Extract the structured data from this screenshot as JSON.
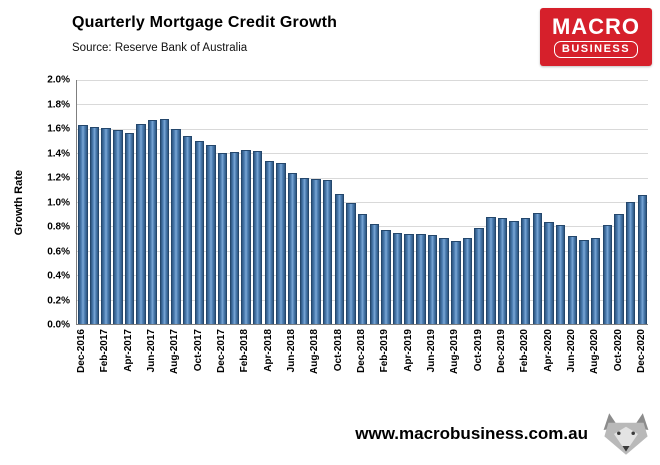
{
  "header": {
    "title": "Quarterly Mortgage Credit Growth",
    "source": "Source: Reserve Bank of Australia",
    "logo": {
      "line1": "MACRO",
      "line2": "BUSINESS",
      "background": "#d6202b"
    }
  },
  "footer": {
    "url": "www.macrobusiness.com.au"
  },
  "chart_data": {
    "type": "bar",
    "title": "Quarterly Mortgage Credit Growth",
    "subtitle": "Source: Reserve Bank of Australia",
    "xlabel": "",
    "ylabel": "Growth Rate",
    "ylim": [
      0.0,
      2.0
    ],
    "y_tick_step": 0.2,
    "y_ticks": [
      "2.0%",
      "1.8%",
      "1.6%",
      "1.4%",
      "1.2%",
      "1.0%",
      "0.8%",
      "0.6%",
      "0.4%",
      "0.2%",
      "0.0%"
    ],
    "grid": true,
    "bar_color": "#3e6a9e",
    "legend": "none",
    "categories": [
      "Dec-2016",
      "Jan-2017",
      "Feb-2017",
      "Mar-2017",
      "Apr-2017",
      "May-2017",
      "Jun-2017",
      "Jul-2017",
      "Aug-2017",
      "Sep-2017",
      "Oct-2017",
      "Nov-2017",
      "Dec-2017",
      "Jan-2018",
      "Feb-2018",
      "Mar-2018",
      "Apr-2018",
      "May-2018",
      "Jun-2018",
      "Jul-2018",
      "Aug-2018",
      "Sep-2018",
      "Oct-2018",
      "Nov-2018",
      "Dec-2018",
      "Jan-2019",
      "Feb-2019",
      "Mar-2019",
      "Apr-2019",
      "May-2019",
      "Jun-2019",
      "Jul-2019",
      "Aug-2019",
      "Sep-2019",
      "Oct-2019",
      "Nov-2019",
      "Dec-2019",
      "Jan-2020",
      "Feb-2020",
      "Mar-2020",
      "Apr-2020",
      "May-2020",
      "Jun-2020",
      "Jul-2020",
      "Aug-2020",
      "Sep-2020",
      "Oct-2020",
      "Nov-2020",
      "Dec-2020"
    ],
    "values": [
      1.62,
      1.61,
      1.6,
      1.58,
      1.56,
      1.63,
      1.66,
      1.67,
      1.59,
      1.53,
      1.49,
      1.46,
      1.39,
      1.4,
      1.42,
      1.41,
      1.33,
      1.31,
      1.23,
      1.19,
      1.18,
      1.17,
      1.06,
      0.98,
      0.89,
      0.81,
      0.76,
      0.74,
      0.73,
      0.73,
      0.72,
      0.7,
      0.67,
      0.7,
      0.78,
      0.87,
      0.86,
      0.84,
      0.86,
      0.9,
      0.83,
      0.8,
      0.71,
      0.68,
      0.7,
      0.8,
      0.89,
      0.99,
      1.05
    ],
    "x_tick_labels": [
      "Dec-2016",
      "Feb-2017",
      "Apr-2017",
      "Jun-2017",
      "Aug-2017",
      "Oct-2017",
      "Dec-2017",
      "Feb-2018",
      "Apr-2018",
      "Jun-2018",
      "Aug-2018",
      "Oct-2018",
      "Dec-2018",
      "Feb-2019",
      "Apr-2019",
      "Jun-2019",
      "Aug-2019",
      "Oct-2019",
      "Dec-2019",
      "Feb-2020",
      "Apr-2020",
      "Jun-2020",
      "Aug-2020",
      "Oct-2020",
      "Dec-2020"
    ],
    "x_tick_every": 2
  }
}
